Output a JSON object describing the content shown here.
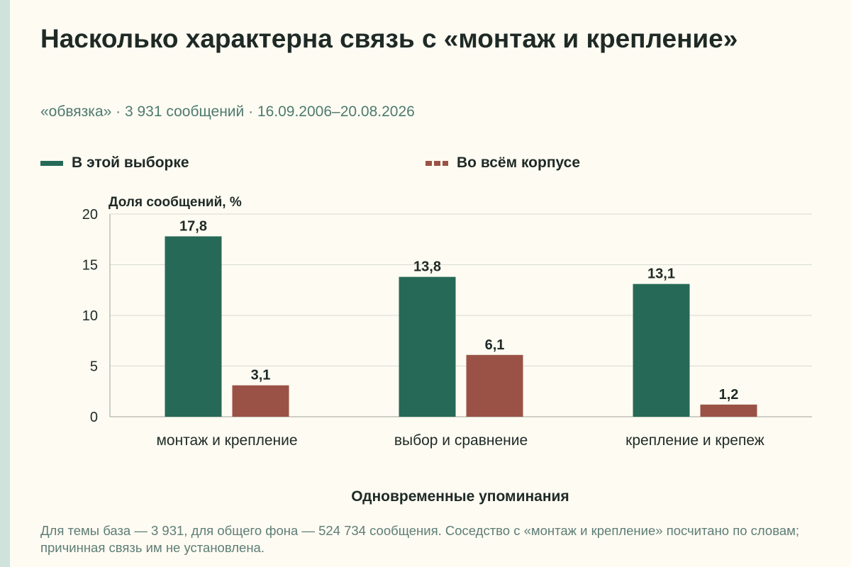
{
  "header": {
    "title": "Насколько характерна связь с «монтаж и крепление»",
    "subtitle": "«обвязка» · 3 931 сообщений · 16.09.2006–20.08.2026"
  },
  "footnote": "Для темы база — 3 931, для общего фона — 524 734 сообщения. Соседство с «монтаж и крепление» посчитано по словам; причинная связь им не установлена.",
  "colors": {
    "sample": "#266957",
    "corpus": "#9a5246",
    "text": "#1f2a26",
    "muted": "#4f7a70",
    "background": "#fdfbf2"
  },
  "chart_data": {
    "type": "bar",
    "title": "Насколько характерна связь с «монтаж и крепление»",
    "ylabel": "Доля сообщений, %",
    "xlabel": "Одновременные упоминания",
    "categories": [
      "монтаж и крепление",
      "выбор и сравнение",
      "крепление и крепеж"
    ],
    "series": [
      {
        "name": "В этой выборке",
        "values": [
          17.8,
          13.8,
          13.1
        ],
        "labels": [
          "17,8",
          "13,8",
          "13,1"
        ]
      },
      {
        "name": "Во всём корпусе",
        "values": [
          3.1,
          6.1,
          1.2
        ],
        "labels": [
          "3,1",
          "6,1",
          "1,2"
        ]
      }
    ],
    "ylim": [
      0,
      20
    ],
    "yticks": [
      0,
      5,
      10,
      15,
      20
    ],
    "grid": true,
    "legend": "top"
  }
}
